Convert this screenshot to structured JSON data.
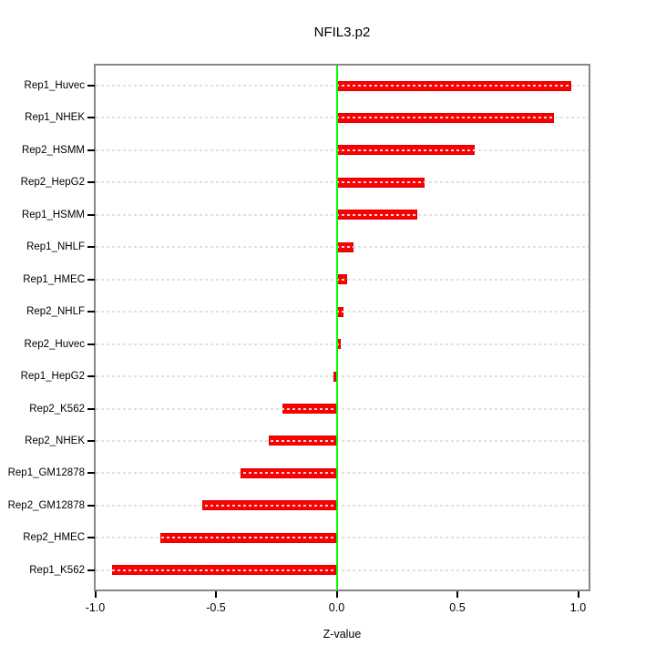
{
  "chart_data": {
    "type": "bar",
    "orientation": "horizontal",
    "title": "NFIL3.p2",
    "xlabel": "Z-value",
    "categories": [
      "Rep1_Huvec",
      "Rep1_NHEK",
      "Rep2_HSMM",
      "Rep2_HepG2",
      "Rep1_HSMM",
      "Rep1_NHLF",
      "Rep1_HMEC",
      "Rep2_NHLF",
      "Rep2_Huvec",
      "Rep1_HepG2",
      "Rep2_K562",
      "Rep2_NHEK",
      "Rep1_GM12878",
      "Rep2_GM12878",
      "Rep2_HMEC",
      "Rep1_K562"
    ],
    "values": [
      0.97,
      0.9,
      0.57,
      0.365,
      0.335,
      0.07,
      0.045,
      0.027,
      0.018,
      -0.012,
      -0.225,
      -0.28,
      -0.4,
      -0.555,
      -0.73,
      -0.93
    ],
    "xticks": [
      -1.0,
      -0.5,
      0.0,
      0.5,
      1.0
    ],
    "xtick_labels": [
      "-1.0",
      "-0.5",
      "0.0",
      "0.5",
      "1.0"
    ],
    "xlim": [
      -1.0,
      1.05
    ],
    "grid": "horizontal-dashed-per-category",
    "legend": null,
    "colors": {
      "bar": "#ff0000",
      "bar_border": "#dd0000",
      "zero_line": "#00ff00",
      "grid_line": "#e0e0e0",
      "axis_box": "#888888",
      "tick": "#000000",
      "text": "#000000",
      "background": "#ffffff"
    }
  }
}
